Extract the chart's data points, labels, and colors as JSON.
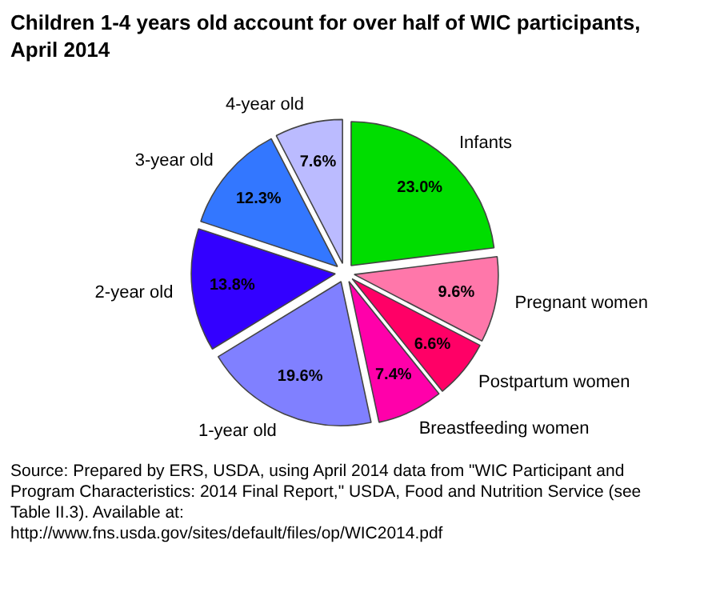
{
  "chart_data": {
    "type": "pie",
    "title": "Children 1-4 years old account for over half of WIC participants, April 2014",
    "categories": [
      "Infants",
      "Pregnant women",
      "Postpartum women",
      "Breastfeeding women",
      "1-year old",
      "2-year old",
      "3-year old",
      "4-year old"
    ],
    "values": [
      23.0,
      9.6,
      6.6,
      7.4,
      19.6,
      13.8,
      12.3,
      7.6
    ],
    "value_labels": [
      "23.0%",
      "9.6%",
      "6.6%",
      "7.4%",
      "19.6%",
      "13.8%",
      "12.3%",
      "7.6%"
    ],
    "colors": [
      "#00dd00",
      "#ff77aa",
      "#ff0066",
      "#ff00aa",
      "#8080ff",
      "#3300ff",
      "#3377ff",
      "#bbbbff"
    ],
    "annotations": [
      "Source: Prepared by ERS, USDA, using April 2014 data from \"WIC Participant and Program Characteristics: 2014 Final Report,\" USDA, Food and Nutrition Service (see Table II.3). Available at: http://www.fns.usda.gov/sites/default/files/op/WIC2014.pdf"
    ]
  }
}
